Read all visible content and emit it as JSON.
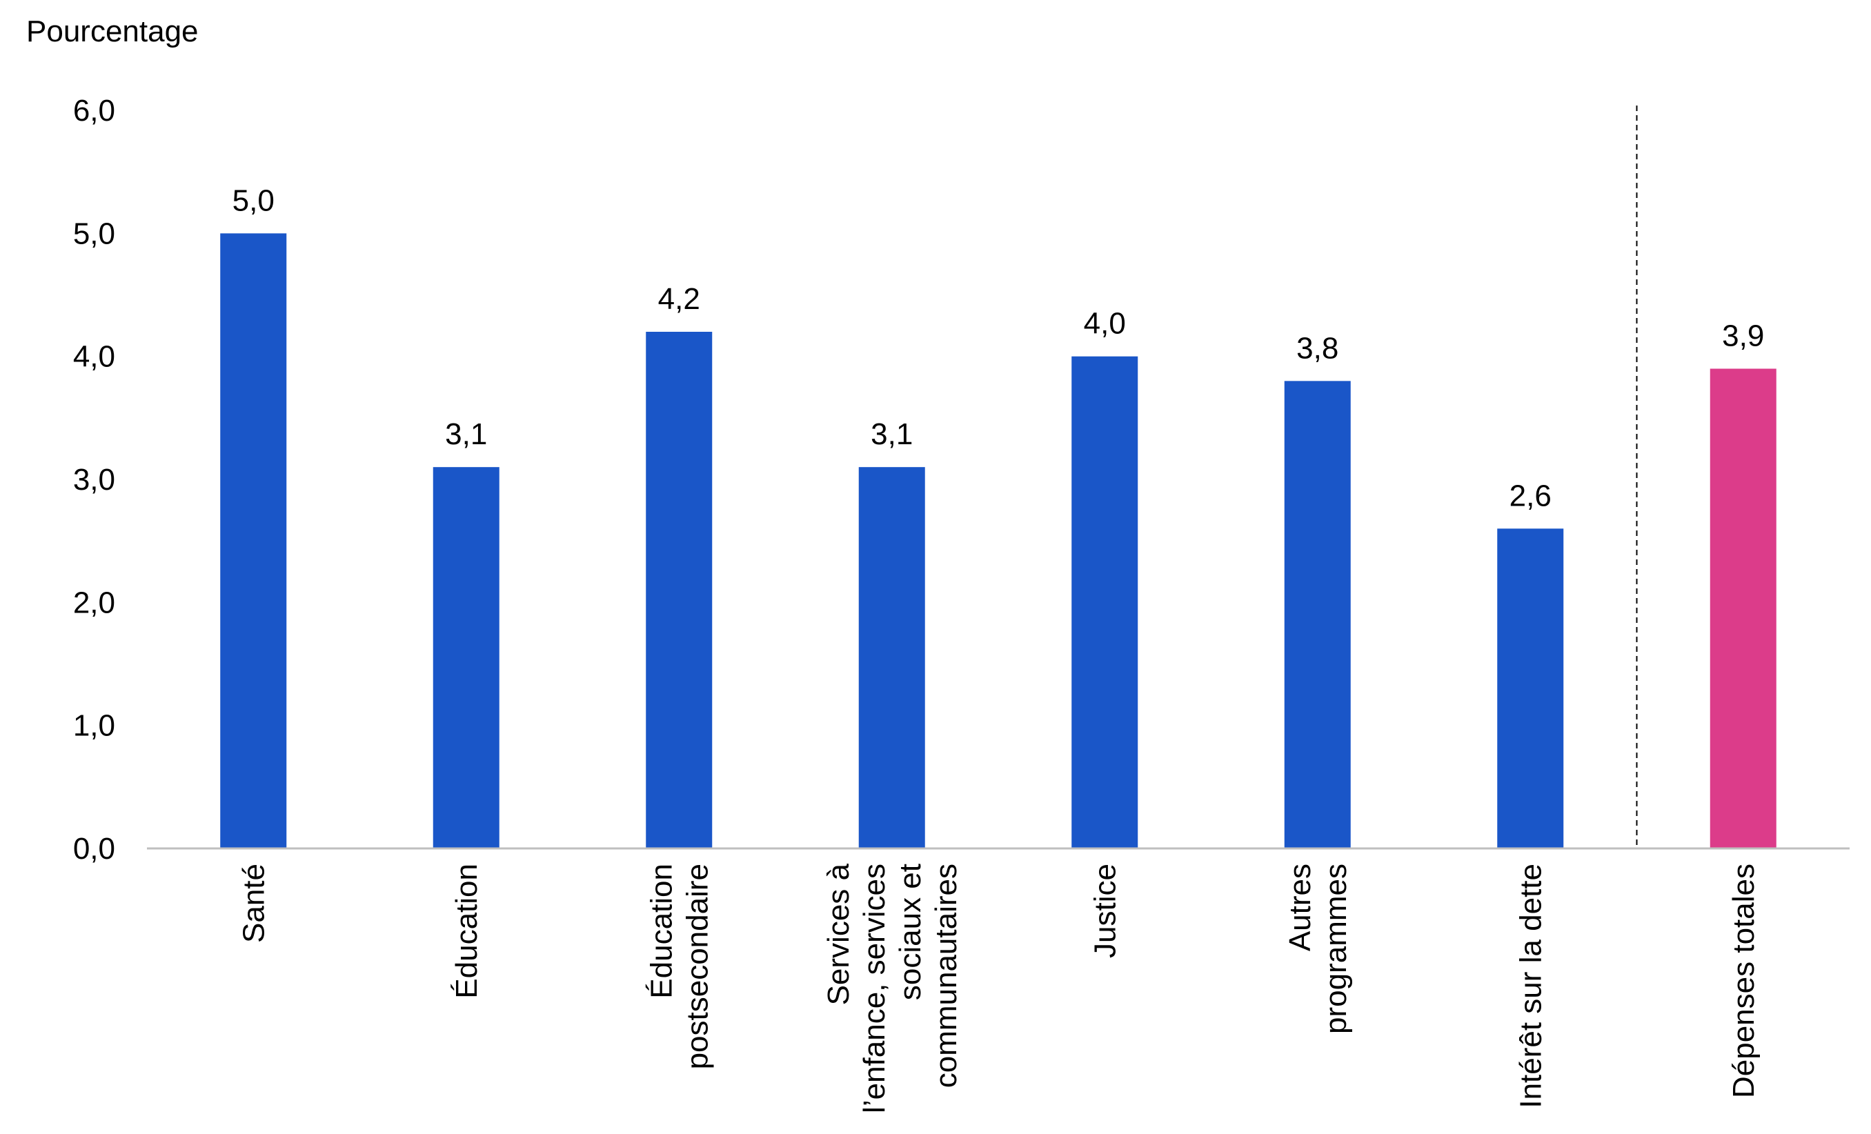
{
  "chart_data": {
    "type": "bar",
    "ylabel": "Pourcentage",
    "ylim": [
      0,
      6
    ],
    "yticks": [
      "0,0",
      "1,0",
      "2,0",
      "3,0",
      "4,0",
      "5,0",
      "6,0"
    ],
    "grid": false,
    "legend": "none",
    "categories": [
      [
        "Santé"
      ],
      [
        "Éducation"
      ],
      [
        "Éducation",
        "postsecondaire"
      ],
      [
        "Services à",
        "l’enfance, services",
        "sociaux et",
        "communautaires"
      ],
      [
        "Justice"
      ],
      [
        "Autres",
        "programmes"
      ],
      [
        "Intérêt sur la dette"
      ],
      [
        "Dépenses totales"
      ]
    ],
    "values": [
      5.0,
      3.1,
      4.2,
      3.1,
      4.0,
      3.8,
      2.6,
      3.9
    ],
    "value_labels": [
      "5,0",
      "3,1",
      "4,2",
      "3,1",
      "4,0",
      "3,8",
      "2,6",
      "3,9"
    ],
    "colors": [
      "#1a56c8",
      "#1a56c8",
      "#1a56c8",
      "#1a56c8",
      "#1a56c8",
      "#1a56c8",
      "#1a56c8",
      "#dc3c8a"
    ],
    "separator_before_index": 7,
    "axis_color": "#bfbfbf"
  }
}
